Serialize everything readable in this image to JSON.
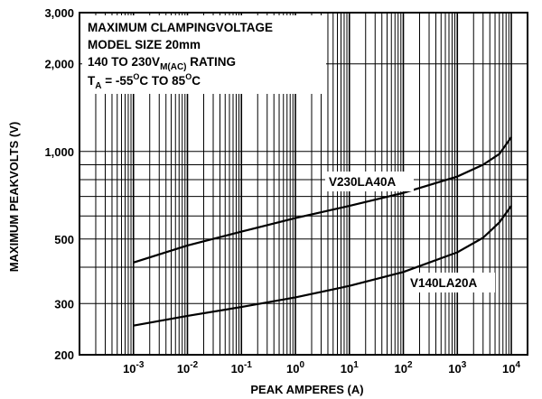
{
  "chart_data": {
    "type": "line",
    "xscale": "log",
    "yscale": "log",
    "xlim": [
      0.0001,
      20000
    ],
    "ylim": [
      200,
      3000
    ],
    "xlabel": "PEAK AMPERES (A)",
    "ylabel": "MAXIMUM PEAKVOLTS (V)",
    "x_ticks": [
      {
        "base": "10",
        "exp": "-3",
        "value": 0.001
      },
      {
        "base": "10",
        "exp": "-2",
        "value": 0.01
      },
      {
        "base": "10",
        "exp": "-1",
        "value": 0.1
      },
      {
        "base": "10",
        "exp": "0",
        "value": 1
      },
      {
        "base": "10",
        "exp": "1",
        "value": 10
      },
      {
        "base": "10",
        "exp": "2",
        "value": 100
      },
      {
        "base": "10",
        "exp": "3",
        "value": 1000
      },
      {
        "base": "10",
        "exp": "4",
        "value": 10000
      }
    ],
    "y_ticks": [
      {
        "label": "200",
        "value": 200
      },
      {
        "label": "300",
        "value": 300
      },
      {
        "label": "500",
        "value": 500
      },
      {
        "label": "1,000",
        "value": 1000
      },
      {
        "label": "2,000",
        "value": 2000
      },
      {
        "label": "3,000",
        "value": 3000
      }
    ],
    "annotation": {
      "line1": "MAXIMUM CLAMPINGVOLTAGE",
      "line2": "MODEL SIZE 20mm",
      "line3_main": "140 TO 230V",
      "line3_sub": "M(AC)",
      "line3_tail": " RATING",
      "line4_t": "T",
      "line4_sub": "A",
      "line4_a": " = -55",
      "line4_sup1": "O",
      "line4_b": "C TO 85",
      "line4_sup2": "O",
      "line4_c": "C"
    },
    "series": [
      {
        "name": "V230LA40A",
        "x": [
          0.001,
          0.01,
          0.1,
          1,
          10,
          100,
          1000,
          3000,
          6000,
          10000
        ],
        "y": [
          415,
          475,
          530,
          590,
          650,
          720,
          820,
          900,
          980,
          1120
        ]
      },
      {
        "name": "V140LA20A",
        "x": [
          0.001,
          0.01,
          0.1,
          1,
          10,
          100,
          1000,
          3000,
          6000,
          10000
        ],
        "y": [
          252,
          272,
          292,
          315,
          345,
          385,
          450,
          505,
          570,
          650
        ]
      }
    ]
  }
}
